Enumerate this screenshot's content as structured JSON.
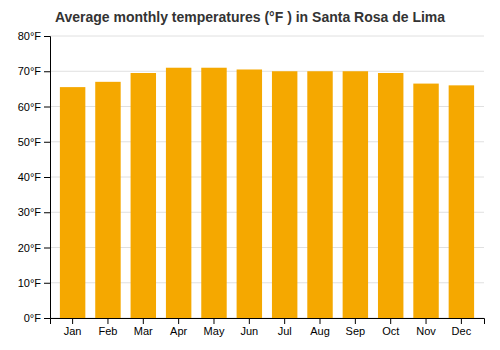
{
  "chart_data": {
    "type": "bar",
    "title": "Average monthly temperatures (°F ) in Santa Rosa de Lima",
    "categories": [
      "Jan",
      "Feb",
      "Mar",
      "Apr",
      "May",
      "Jun",
      "Jul",
      "Aug",
      "Sep",
      "Oct",
      "Nov",
      "Dec"
    ],
    "values": [
      65.5,
      67.0,
      69.5,
      71.0,
      71.0,
      70.5,
      70.0,
      70.0,
      70.0,
      69.5,
      66.5,
      66.0
    ],
    "color": "#F5A800",
    "ylim": [
      0,
      80
    ],
    "yticks": [
      {
        "value": 0,
        "label": "0°F"
      },
      {
        "value": 10,
        "label": "10°F"
      },
      {
        "value": 20,
        "label": "20°F"
      },
      {
        "value": 30,
        "label": "30°F"
      },
      {
        "value": 40,
        "label": "40°F"
      },
      {
        "value": 50,
        "label": "50°F"
      },
      {
        "value": 60,
        "label": "60°F"
      },
      {
        "value": 70,
        "label": "70°F"
      },
      {
        "value": 80,
        "label": "80°F"
      }
    ],
    "grid": true
  }
}
